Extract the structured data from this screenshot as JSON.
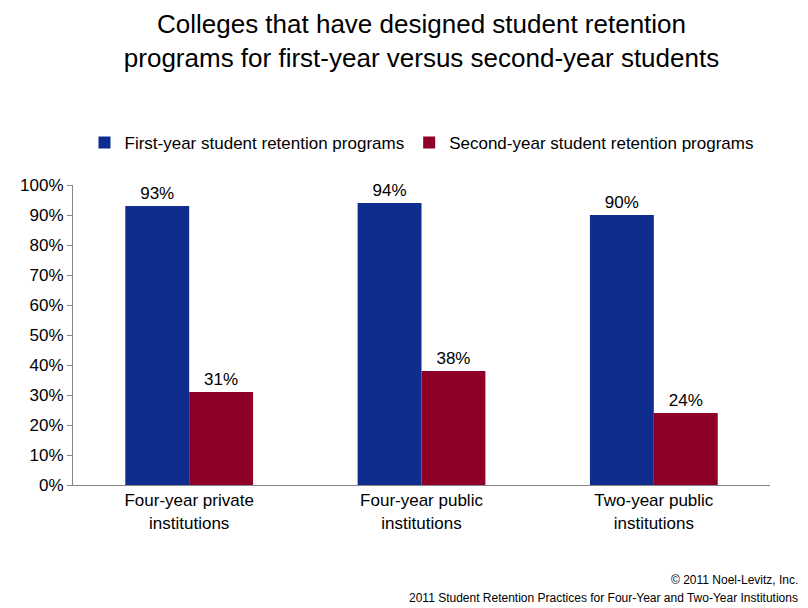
{
  "chart_data": {
    "type": "bar",
    "title": "Colleges that have designed student retention\nprograms for first-year versus second-year students",
    "categories": [
      "Four-year private\ninstitutions",
      "Four-year public\ninstitutions",
      "Two-year public\ninstitutions"
    ],
    "series": [
      {
        "name": "First-year student retention programs",
        "color": "#0f2d8c",
        "values": [
          93,
          94,
          90
        ],
        "value_labels": [
          "93%",
          "94%",
          "90%"
        ]
      },
      {
        "name": "Second-year student retention programs",
        "color": "#8e0028",
        "values": [
          31,
          38,
          24
        ],
        "value_labels": [
          "31%",
          "38%",
          "24%"
        ]
      }
    ],
    "ylim": [
      0,
      100
    ],
    "yticks": [
      {
        "value": 0,
        "label": "0%"
      },
      {
        "value": 10,
        "label": "10%"
      },
      {
        "value": 20,
        "label": "20%"
      },
      {
        "value": 30,
        "label": "30%"
      },
      {
        "value": 40,
        "label": "40%"
      },
      {
        "value": 50,
        "label": "50%"
      },
      {
        "value": 60,
        "label": "60%"
      },
      {
        "value": 70,
        "label": "70%"
      },
      {
        "value": 80,
        "label": "80%"
      },
      {
        "value": 90,
        "label": "90%"
      },
      {
        "value": 100,
        "label": "100%"
      }
    ],
    "grid": false,
    "legend": "top",
    "data_labels": true,
    "annotations": [
      "© 2011 Noel-Levitz, Inc.",
      "2011 Student Retention Practices for Four-Year and Two-Year Institutions"
    ]
  }
}
